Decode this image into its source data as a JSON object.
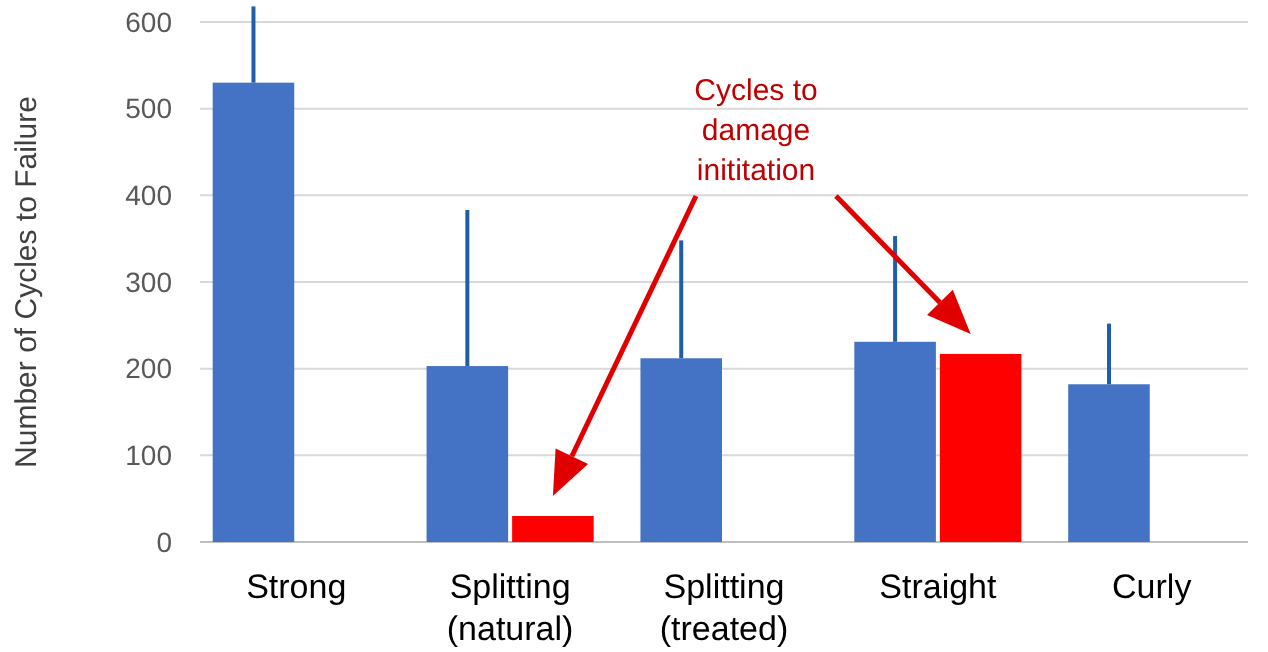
{
  "chart_data": {
    "type": "bar",
    "ylabel": "Number of Cycles to Failure",
    "categories": [
      "Strong",
      "Splitting (natural)",
      "Splitting (treated)",
      "Straight",
      "Curly"
    ],
    "series": [
      {
        "color": "#4472c4",
        "values": [
          530,
          203,
          212,
          231,
          182
        ],
        "errors": [
          [
            530,
            618
          ],
          [
            203,
            383
          ],
          [
            212,
            348
          ],
          [
            231,
            353
          ],
          [
            182,
            252
          ]
        ]
      },
      {
        "color": "#ff0000",
        "values": [
          null,
          30,
          null,
          217,
          null
        ]
      }
    ],
    "ylim": [
      0,
      600
    ],
    "yticks": [
      0,
      100,
      200,
      300,
      400,
      500,
      600
    ],
    "grid": "y",
    "annotations": [
      "Cycles to damage inititation"
    ]
  }
}
